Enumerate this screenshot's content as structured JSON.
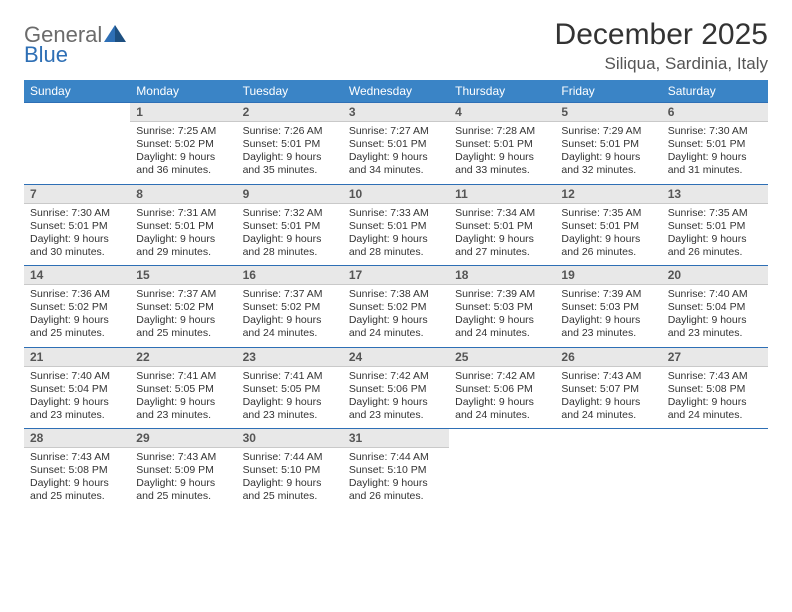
{
  "logo": {
    "general": "General",
    "blue": "Blue"
  },
  "title": "December 2025",
  "location": "Siliqua, Sardinia, Italy",
  "colors": {
    "header_bg": "#3a84c6",
    "header_text": "#ffffff",
    "daynum_bg": "#e8e8e8",
    "daynum_border_top": "#2e6fb5",
    "logo_accent": "#2e6fb5",
    "text": "#333333"
  },
  "day_headers": [
    "Sunday",
    "Monday",
    "Tuesday",
    "Wednesday",
    "Thursday",
    "Friday",
    "Saturday"
  ],
  "weeks": [
    {
      "nums": [
        "",
        "1",
        "2",
        "3",
        "4",
        "5",
        "6"
      ],
      "cells": [
        [],
        [
          "Sunrise: 7:25 AM",
          "Sunset: 5:02 PM",
          "Daylight: 9 hours",
          "and 36 minutes."
        ],
        [
          "Sunrise: 7:26 AM",
          "Sunset: 5:01 PM",
          "Daylight: 9 hours",
          "and 35 minutes."
        ],
        [
          "Sunrise: 7:27 AM",
          "Sunset: 5:01 PM",
          "Daylight: 9 hours",
          "and 34 minutes."
        ],
        [
          "Sunrise: 7:28 AM",
          "Sunset: 5:01 PM",
          "Daylight: 9 hours",
          "and 33 minutes."
        ],
        [
          "Sunrise: 7:29 AM",
          "Sunset: 5:01 PM",
          "Daylight: 9 hours",
          "and 32 minutes."
        ],
        [
          "Sunrise: 7:30 AM",
          "Sunset: 5:01 PM",
          "Daylight: 9 hours",
          "and 31 minutes."
        ]
      ]
    },
    {
      "nums": [
        "7",
        "8",
        "9",
        "10",
        "11",
        "12",
        "13"
      ],
      "cells": [
        [
          "Sunrise: 7:30 AM",
          "Sunset: 5:01 PM",
          "Daylight: 9 hours",
          "and 30 minutes."
        ],
        [
          "Sunrise: 7:31 AM",
          "Sunset: 5:01 PM",
          "Daylight: 9 hours",
          "and 29 minutes."
        ],
        [
          "Sunrise: 7:32 AM",
          "Sunset: 5:01 PM",
          "Daylight: 9 hours",
          "and 28 minutes."
        ],
        [
          "Sunrise: 7:33 AM",
          "Sunset: 5:01 PM",
          "Daylight: 9 hours",
          "and 28 minutes."
        ],
        [
          "Sunrise: 7:34 AM",
          "Sunset: 5:01 PM",
          "Daylight: 9 hours",
          "and 27 minutes."
        ],
        [
          "Sunrise: 7:35 AM",
          "Sunset: 5:01 PM",
          "Daylight: 9 hours",
          "and 26 minutes."
        ],
        [
          "Sunrise: 7:35 AM",
          "Sunset: 5:01 PM",
          "Daylight: 9 hours",
          "and 26 minutes."
        ]
      ]
    },
    {
      "nums": [
        "14",
        "15",
        "16",
        "17",
        "18",
        "19",
        "20"
      ],
      "cells": [
        [
          "Sunrise: 7:36 AM",
          "Sunset: 5:02 PM",
          "Daylight: 9 hours",
          "and 25 minutes."
        ],
        [
          "Sunrise: 7:37 AM",
          "Sunset: 5:02 PM",
          "Daylight: 9 hours",
          "and 25 minutes."
        ],
        [
          "Sunrise: 7:37 AM",
          "Sunset: 5:02 PM",
          "Daylight: 9 hours",
          "and 24 minutes."
        ],
        [
          "Sunrise: 7:38 AM",
          "Sunset: 5:02 PM",
          "Daylight: 9 hours",
          "and 24 minutes."
        ],
        [
          "Sunrise: 7:39 AM",
          "Sunset: 5:03 PM",
          "Daylight: 9 hours",
          "and 24 minutes."
        ],
        [
          "Sunrise: 7:39 AM",
          "Sunset: 5:03 PM",
          "Daylight: 9 hours",
          "and 23 minutes."
        ],
        [
          "Sunrise: 7:40 AM",
          "Sunset: 5:04 PM",
          "Daylight: 9 hours",
          "and 23 minutes."
        ]
      ]
    },
    {
      "nums": [
        "21",
        "22",
        "23",
        "24",
        "25",
        "26",
        "27"
      ],
      "cells": [
        [
          "Sunrise: 7:40 AM",
          "Sunset: 5:04 PM",
          "Daylight: 9 hours",
          "and 23 minutes."
        ],
        [
          "Sunrise: 7:41 AM",
          "Sunset: 5:05 PM",
          "Daylight: 9 hours",
          "and 23 minutes."
        ],
        [
          "Sunrise: 7:41 AM",
          "Sunset: 5:05 PM",
          "Daylight: 9 hours",
          "and 23 minutes."
        ],
        [
          "Sunrise: 7:42 AM",
          "Sunset: 5:06 PM",
          "Daylight: 9 hours",
          "and 23 minutes."
        ],
        [
          "Sunrise: 7:42 AM",
          "Sunset: 5:06 PM",
          "Daylight: 9 hours",
          "and 24 minutes."
        ],
        [
          "Sunrise: 7:43 AM",
          "Sunset: 5:07 PM",
          "Daylight: 9 hours",
          "and 24 minutes."
        ],
        [
          "Sunrise: 7:43 AM",
          "Sunset: 5:08 PM",
          "Daylight: 9 hours",
          "and 24 minutes."
        ]
      ]
    },
    {
      "nums": [
        "28",
        "29",
        "30",
        "31",
        "",
        "",
        ""
      ],
      "cells": [
        [
          "Sunrise: 7:43 AM",
          "Sunset: 5:08 PM",
          "Daylight: 9 hours",
          "and 25 minutes."
        ],
        [
          "Sunrise: 7:43 AM",
          "Sunset: 5:09 PM",
          "Daylight: 9 hours",
          "and 25 minutes."
        ],
        [
          "Sunrise: 7:44 AM",
          "Sunset: 5:10 PM",
          "Daylight: 9 hours",
          "and 25 minutes."
        ],
        [
          "Sunrise: 7:44 AM",
          "Sunset: 5:10 PM",
          "Daylight: 9 hours",
          "and 26 minutes."
        ],
        [],
        [],
        []
      ]
    }
  ]
}
